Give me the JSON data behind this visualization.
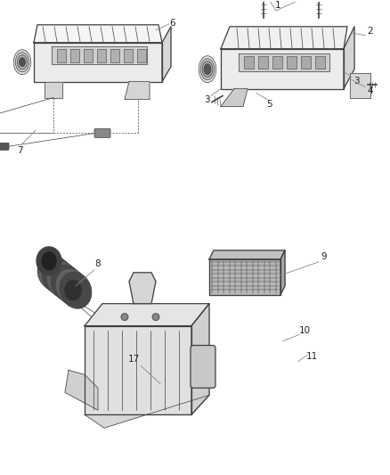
{
  "bg_color": "#ffffff",
  "line_color": "#404040",
  "label_color": "#222222",
  "fig_width": 4.38,
  "fig_height": 5.33,
  "dpi": 100,
  "label_fontsize": 7.5
}
